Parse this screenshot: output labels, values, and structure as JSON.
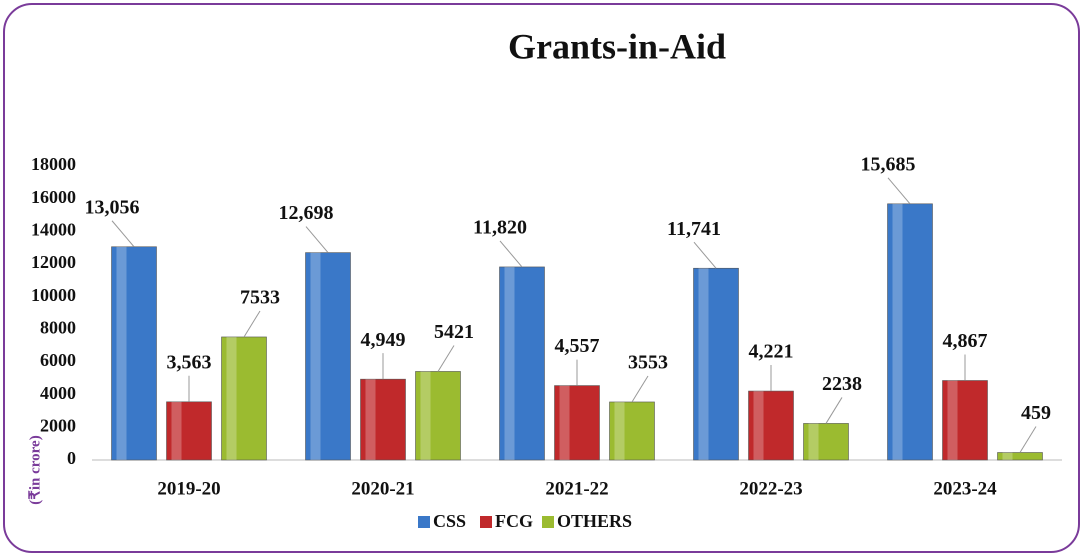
{
  "chart_data": {
    "type": "bar",
    "title": "Grants-in-Aid",
    "y_label": "(₹in crore)",
    "categories": [
      "2019-20",
      "2020-21",
      "2021-22",
      "2022-23",
      "2023-24"
    ],
    "series": [
      {
        "name": "CSS",
        "color": "#3a78c8",
        "values": [
          13056,
          12698,
          11820,
          11741,
          15685
        ],
        "value_labels": [
          "13,056",
          "12,698",
          "11,820",
          "11,741",
          "15,685"
        ]
      },
      {
        "name": "FCG",
        "color": "#c0292b",
        "values": [
          3563,
          4949,
          4557,
          4221,
          4867
        ],
        "value_labels": [
          "3,563",
          "4,949",
          "4,557",
          "4,221",
          "4,867"
        ]
      },
      {
        "name": "OTHERS",
        "color": "#9bbb30",
        "values": [
          7533,
          5421,
          3553,
          2238,
          459
        ]
      }
    ],
    "ylim": [
      0,
      18000
    ],
    "yticks": [
      0,
      2000,
      4000,
      6000,
      8000,
      10000,
      12000,
      14000,
      16000,
      18000
    ],
    "grid": false,
    "legend": "bottom"
  }
}
